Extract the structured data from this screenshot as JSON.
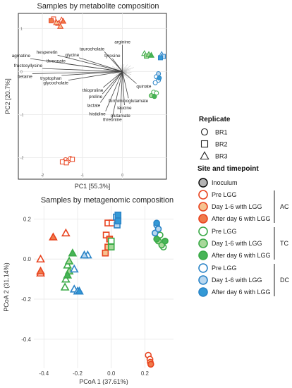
{
  "chart_data": [
    {
      "type": "scatter",
      "subtype": "biplot",
      "title": "Samples by metabolite composition",
      "xlabel": "PC1 [55.3%]",
      "ylabel": "PC2 [20.7%]",
      "xlim": [
        -2.6,
        1.1
      ],
      "ylim": [
        -2.5,
        1.35
      ],
      "xticks": [
        -2,
        -1,
        0
      ],
      "yticks": [
        1,
        0,
        -1,
        -2
      ],
      "grid": true,
      "loadings": [
        {
          "label": "arginine",
          "x": 0.0,
          "y": 0.62
        },
        {
          "label": "taurocholate",
          "x": -0.45,
          "y": 0.46
        },
        {
          "label": "tyrosine",
          "x": -0.25,
          "y": 0.3
        },
        {
          "label": "hesperetin",
          "x": -1.62,
          "y": 0.38
        },
        {
          "label": "glycine",
          "x": -1.08,
          "y": 0.32
        },
        {
          "label": "agmatine",
          "x": -2.3,
          "y": 0.3
        },
        {
          "label": "threonate",
          "x": -1.42,
          "y": 0.18
        },
        {
          "label": "fructosyllysine",
          "x": -2.0,
          "y": 0.07
        },
        {
          "label": "betaine",
          "x": -2.25,
          "y": -0.05
        },
        {
          "label": "tryptophan",
          "x": -1.52,
          "y": -0.09
        },
        {
          "label": "glycocholate",
          "x": -1.35,
          "y": -0.2
        },
        {
          "label": "thioproline",
          "x": -0.48,
          "y": -0.37
        },
        {
          "label": "quinate",
          "x": 0.35,
          "y": -0.28
        },
        {
          "label": "proline",
          "x": -0.5,
          "y": -0.52
        },
        {
          "label": "formiminoglutamate",
          "x": 0.15,
          "y": -0.62
        },
        {
          "label": "lactate",
          "x": -0.55,
          "y": -0.72
        },
        {
          "label": "leucine",
          "x": 0.05,
          "y": -0.78
        },
        {
          "label": "histidine",
          "x": -0.42,
          "y": -0.92
        },
        {
          "label": "glutamate",
          "x": -0.05,
          "y": -0.96
        },
        {
          "label": "threonine",
          "x": -0.25,
          "y": -1.05
        }
      ],
      "series": [
        {
          "site": "AC",
          "timepoint": "Pre LGG",
          "color": "#e8431f",
          "fill": "none",
          "points": [
            {
              "x": -1.42,
              "y": -2.05,
              "replicate": "BR1"
            },
            {
              "x": -1.36,
              "y": -2.08,
              "replicate": "BR1"
            },
            {
              "x": -1.3,
              "y": -2.02,
              "replicate": "BR1"
            },
            {
              "x": -1.5,
              "y": -2.1,
              "replicate": "BR2"
            },
            {
              "x": -1.4,
              "y": -2.12,
              "replicate": "BR2"
            },
            {
              "x": -1.25,
              "y": -2.04,
              "replicate": "BR2"
            },
            {
              "x": -1.52,
              "y": 1.2,
              "replicate": "BR3"
            },
            {
              "x": -1.6,
              "y": 1.12,
              "replicate": "BR3"
            },
            {
              "x": -1.72,
              "y": 1.22,
              "replicate": "BR2"
            }
          ]
        },
        {
          "site": "AC",
          "timepoint": "Day 1-6 with LGG",
          "color": "#e8431f",
          "fill": "#f6c290",
          "points": [
            {
              "x": -1.65,
              "y": 1.14,
              "replicate": "BR3"
            },
            {
              "x": -1.55,
              "y": 1.05,
              "replicate": "BR3"
            }
          ]
        },
        {
          "site": "AC",
          "timepoint": "After day 6 with LGG",
          "color": "#e8431f",
          "fill": "#f07a4a",
          "points": [
            {
              "x": -1.48,
              "y": 1.17,
              "replicate": "BR3"
            },
            {
              "x": -1.78,
              "y": 1.18,
              "replicate": "BR2"
            }
          ]
        },
        {
          "site": "TC",
          "timepoint": "Pre LGG",
          "color": "#3aaa47",
          "fill": "none",
          "points": [
            {
              "x": 0.78,
              "y": -0.48,
              "replicate": "BR1"
            },
            {
              "x": 0.85,
              "y": -0.5,
              "replicate": "BR1"
            },
            {
              "x": 0.55,
              "y": 0.42,
              "replicate": "BR3"
            }
          ]
        },
        {
          "site": "TC",
          "timepoint": "Day 1-6 with LGG",
          "color": "#3aaa47",
          "fill": "#a8d89a",
          "points": [
            {
              "x": 0.72,
              "y": -0.56,
              "replicate": "BR1"
            },
            {
              "x": 0.6,
              "y": 0.36,
              "replicate": "BR2"
            },
            {
              "x": 0.66,
              "y": 0.4,
              "replicate": "BR3"
            }
          ]
        },
        {
          "site": "TC",
          "timepoint": "After day 6 with LGG",
          "color": "#3aaa47",
          "fill": "#48b457",
          "points": [
            {
              "x": 0.8,
              "y": -0.58,
              "replicate": "BR1"
            },
            {
              "x": 0.72,
              "y": 0.38,
              "replicate": "BR3"
            }
          ]
        },
        {
          "site": "DC",
          "timepoint": "Pre LGG",
          "color": "#2a84c7",
          "fill": "none",
          "points": [
            {
              "x": 0.85,
              "y": -0.12,
              "replicate": "BR1"
            },
            {
              "x": 0.9,
              "y": -0.2,
              "replicate": "BR1"
            },
            {
              "x": 0.82,
              "y": -0.26,
              "replicate": "BR1"
            },
            {
              "x": 0.98,
              "y": 0.4,
              "replicate": "BR3"
            }
          ]
        },
        {
          "site": "DC",
          "timepoint": "Day 1-6 with LGG",
          "color": "#2a84c7",
          "fill": "#b9d7ef",
          "points": [
            {
              "x": 0.9,
              "y": -0.05,
              "replicate": "BR1"
            },
            {
              "x": 1.02,
              "y": 0.35,
              "replicate": "BR2"
            }
          ]
        },
        {
          "site": "DC",
          "timepoint": "After day 6 with LGG",
          "color": "#2a84c7",
          "fill": "#3399d6",
          "points": [
            {
              "x": 0.95,
              "y": 0.32,
              "replicate": "BR2"
            },
            {
              "x": 0.92,
              "y": -0.15,
              "replicate": "BR1"
            }
          ]
        }
      ]
    },
    {
      "type": "scatter",
      "title": "Samples by metagenomic composition",
      "xlabel": "PCoA 1 (37.61%)",
      "ylabel": "PCoA 2 (31.14%)",
      "xlim": [
        -0.46,
        0.37
      ],
      "ylim": [
        -0.545,
        0.265
      ],
      "xticks": [
        -0.4,
        -0.2,
        0.0,
        0.2
      ],
      "xtick_labels": [
        "-0.4",
        "-0.2",
        "0.0",
        "0.2"
      ],
      "yticks": [
        0.2,
        0.0,
        -0.2,
        -0.4
      ],
      "ytick_labels": [
        "0.2",
        "0.0",
        "-0.2",
        "-0.4"
      ],
      "grid": true,
      "series": [
        {
          "site": "AC",
          "timepoint": "Pre LGG",
          "color": "#e8431f",
          "fill": "none",
          "points": [
            {
              "x": -0.42,
              "y": 0.0,
              "replicate": "BR3"
            },
            {
              "x": -0.42,
              "y": -0.07,
              "replicate": "BR3"
            },
            {
              "x": -0.27,
              "y": 0.13,
              "replicate": "BR3"
            },
            {
              "x": -0.02,
              "y": 0.18,
              "replicate": "BR2"
            },
            {
              "x": -0.03,
              "y": 0.12,
              "replicate": "BR2"
            },
            {
              "x": 0.005,
              "y": 0.18,
              "replicate": "BR2"
            },
            {
              "x": 0.22,
              "y": -0.48,
              "replicate": "BR1"
            },
            {
              "x": 0.23,
              "y": -0.5,
              "replicate": "BR1"
            }
          ]
        },
        {
          "site": "AC",
          "timepoint": "Day 1-6 with LGG",
          "color": "#e8431f",
          "fill": "#f6c290",
          "points": [
            {
              "x": -0.02,
              "y": 0.06,
              "replicate": "BR2"
            },
            {
              "x": -0.035,
              "y": 0.03,
              "replicate": "BR2"
            },
            {
              "x": 0.232,
              "y": -0.515,
              "replicate": "BR1"
            }
          ]
        },
        {
          "site": "AC",
          "timepoint": "After day 6 with LGG",
          "color": "#e8431f",
          "fill": "#f07a4a",
          "points": [
            {
              "x": -0.42,
              "y": -0.06,
              "replicate": "BR3"
            },
            {
              "x": -0.345,
              "y": 0.11,
              "replicate": "BR3"
            },
            {
              "x": -0.01,
              "y": 0.1,
              "replicate": "BR2"
            },
            {
              "x": 0.235,
              "y": -0.525,
              "replicate": "BR1"
            }
          ]
        },
        {
          "site": "TC",
          "timepoint": "Pre LGG",
          "color": "#3aaa47",
          "fill": "none",
          "points": [
            {
              "x": -0.27,
              "y": -0.1,
              "replicate": "BR3"
            },
            {
              "x": -0.275,
              "y": -0.14,
              "replicate": "BR3"
            },
            {
              "x": -0.26,
              "y": -0.03,
              "replicate": "BR3"
            },
            {
              "x": 0.31,
              "y": 0.06,
              "replicate": "BR1"
            },
            {
              "x": 0.29,
              "y": 0.12,
              "replicate": "BR1"
            },
            {
              "x": 0.0,
              "y": 0.09,
              "replicate": "BR2"
            }
          ]
        },
        {
          "site": "TC",
          "timepoint": "Day 1-6 with LGG",
          "color": "#3aaa47",
          "fill": "#a8d89a",
          "points": [
            {
              "x": -0.25,
              "y": -0.01,
              "replicate": "BR3"
            },
            {
              "x": -0.25,
              "y": -0.06,
              "replicate": "BR3"
            },
            {
              "x": 0.28,
              "y": 0.09,
              "replicate": "BR1"
            },
            {
              "x": 0.3,
              "y": 0.07,
              "replicate": "BR1"
            },
            {
              "x": 0.0,
              "y": 0.06,
              "replicate": "BR2"
            }
          ]
        },
        {
          "site": "TC",
          "timepoint": "After day 6 with LGG",
          "color": "#3aaa47",
          "fill": "#48b457",
          "points": [
            {
              "x": -0.26,
              "y": -0.08,
              "replicate": "BR3"
            },
            {
              "x": -0.23,
              "y": 0.03,
              "replicate": "BR3"
            },
            {
              "x": 0.32,
              "y": 0.09,
              "replicate": "BR1"
            },
            {
              "x": 0.27,
              "y": 0.1,
              "replicate": "BR1"
            }
          ]
        },
        {
          "site": "DC",
          "timepoint": "Pre LGG",
          "color": "#2a84c7",
          "fill": "none",
          "points": [
            {
              "x": -0.22,
              "y": -0.05,
              "replicate": "BR3"
            },
            {
              "x": -0.22,
              "y": -0.15,
              "replicate": "BR3"
            },
            {
              "x": -0.2,
              "y": -0.16,
              "replicate": "BR3"
            },
            {
              "x": -0.14,
              "y": 0.02,
              "replicate": "BR3"
            },
            {
              "x": 0.03,
              "y": 0.21,
              "replicate": "BR2"
            },
            {
              "x": 0.27,
              "y": 0.17,
              "replicate": "BR1"
            }
          ]
        },
        {
          "site": "DC",
          "timepoint": "Day 1-6 with LGG",
          "color": "#2a84c7",
          "fill": "#b9d7ef",
          "points": [
            {
              "x": -0.16,
              "y": 0.02,
              "replicate": "BR3"
            },
            {
              "x": 0.035,
              "y": 0.17,
              "replicate": "BR2"
            },
            {
              "x": 0.26,
              "y": 0.13,
              "replicate": "BR1"
            },
            {
              "x": 0.28,
              "y": 0.15,
              "replicate": "BR1"
            }
          ]
        },
        {
          "site": "DC",
          "timepoint": "After day 6 with LGG",
          "color": "#2a84c7",
          "fill": "#3399d6",
          "points": [
            {
              "x": -0.19,
              "y": -0.16,
              "replicate": "BR3"
            },
            {
              "x": 0.04,
              "y": 0.22,
              "replicate": "BR2"
            },
            {
              "x": 0.04,
              "y": 0.19,
              "replicate": "BR2"
            },
            {
              "x": 0.27,
              "y": 0.18,
              "replicate": "BR1"
            }
          ]
        }
      ]
    }
  ],
  "legend": {
    "replicate": {
      "title": "Replicate",
      "items": [
        {
          "label": "BR1",
          "shape": "circle"
        },
        {
          "label": "BR2",
          "shape": "square"
        },
        {
          "label": "BR3",
          "shape": "triangle"
        }
      ]
    },
    "site": {
      "title": "Site and timepoint",
      "inoculum": {
        "label": "Inoculum",
        "stroke": "#000000",
        "fill": "#b3b3b3"
      },
      "groups": [
        {
          "site": "AC",
          "color": "#e8431f",
          "items": [
            {
              "label": "Pre LGG",
              "fill": "none"
            },
            {
              "label": "Day 1-6 with LGG",
              "fill": "#f6c290"
            },
            {
              "label": "After day 6 with LGG",
              "fill": "#f07a4a"
            }
          ]
        },
        {
          "site": "TC",
          "color": "#3aaa47",
          "items": [
            {
              "label": "Pre LGG",
              "fill": "none"
            },
            {
              "label": "Day 1-6 with LGG",
              "fill": "#a8d89a"
            },
            {
              "label": "After day 6 with LGG",
              "fill": "#48b457"
            }
          ]
        },
        {
          "site": "DC",
          "color": "#2a84c7",
          "items": [
            {
              "label": "Pre LGG",
              "fill": "none"
            },
            {
              "label": "Day 1-6 with LGG",
              "fill": "#b9d7ef"
            },
            {
              "label": "After day 6 with LGG",
              "fill": "#3399d6"
            }
          ]
        }
      ]
    }
  }
}
